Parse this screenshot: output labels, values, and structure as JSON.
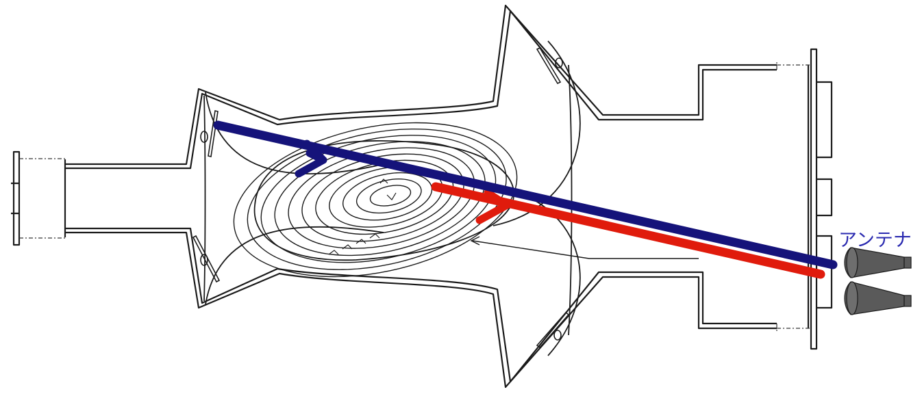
{
  "diagram": {
    "antenna_label": "アンテナ",
    "colors": {
      "outline": "#1a1a1a",
      "blue_beam": "#15137a",
      "red_beam": "#e01b0c",
      "label": "#2a2ab0",
      "antenna_fill": "#5a5a5a"
    },
    "beams": [
      {
        "name": "incident-blue-beam",
        "color": "#15137a"
      },
      {
        "name": "reflected-red-beam",
        "color": "#e01b0c"
      }
    ],
    "antennas": [
      {
        "name": "upper-horn-antenna-icon"
      },
      {
        "name": "lower-horn-antenna-icon"
      }
    ]
  }
}
